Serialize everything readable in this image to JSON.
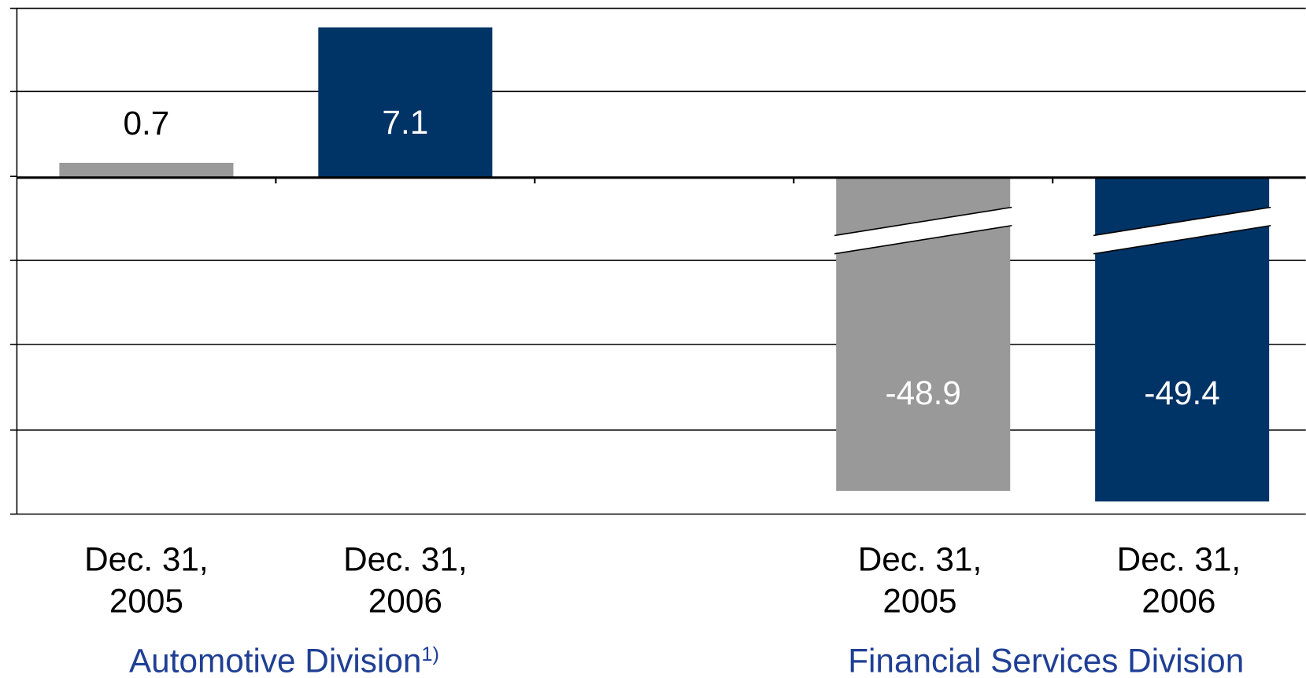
{
  "chart_data": {
    "type": "bar",
    "categories": [
      [
        "Dec. 31,",
        "2005"
      ],
      [
        "Dec. 31,",
        "2006"
      ],
      null,
      [
        "Dec. 31,",
        "2005"
      ],
      [
        "Dec. 31,",
        "2006"
      ]
    ],
    "values": [
      0.7,
      7.1,
      null,
      -48.9,
      -49.4
    ],
    "colors": [
      "#999999",
      "#003366",
      null,
      "#999999",
      "#003366"
    ],
    "ylim": [
      -50,
      8
    ],
    "y_break": [
      -36.6,
      -2.5
    ],
    "groups": [
      {
        "label": "Automotive Division",
        "note": "1)",
        "categories": [
          0,
          1
        ]
      },
      {
        "label": "Financial Services Division",
        "categories": [
          3,
          4
        ]
      }
    ]
  }
}
